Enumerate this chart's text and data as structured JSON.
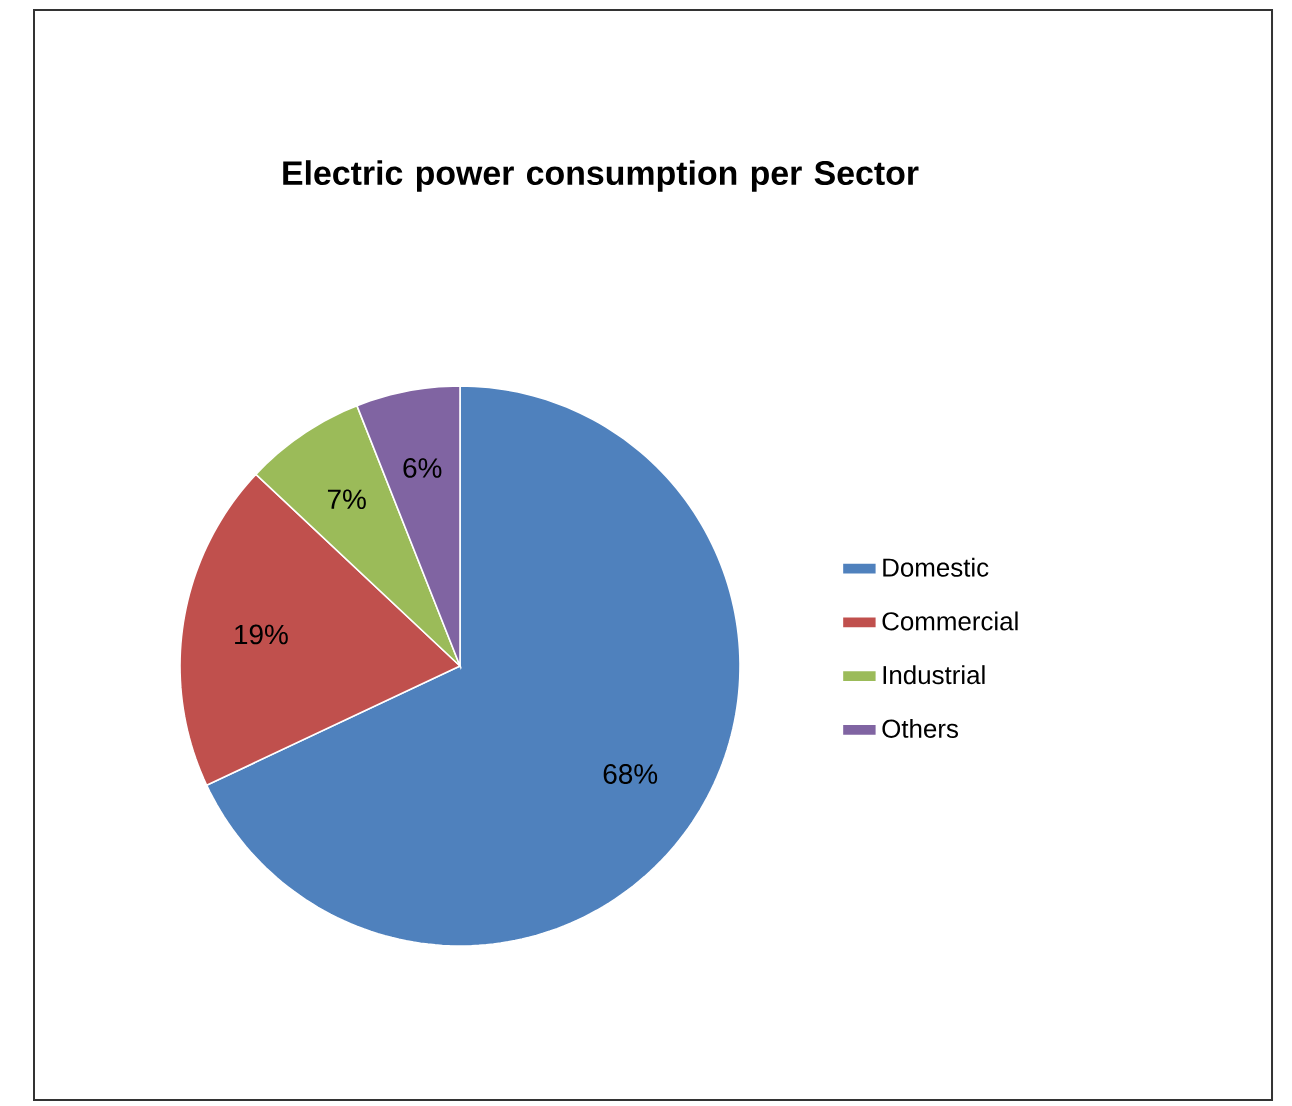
{
  "chart_data": {
    "type": "pie",
    "title": "Electric power consumption per Sector",
    "categories": [
      "Domestic",
      "Commercial",
      "Industrial",
      "Others"
    ],
    "values": [
      68,
      19,
      7,
      6
    ],
    "colors": [
      "#4f81bd",
      "#c0504d",
      "#9bbb59",
      "#8064a2"
    ],
    "value_labels": [
      "68%",
      "19%",
      "7%",
      "6%"
    ],
    "legend": "right"
  }
}
